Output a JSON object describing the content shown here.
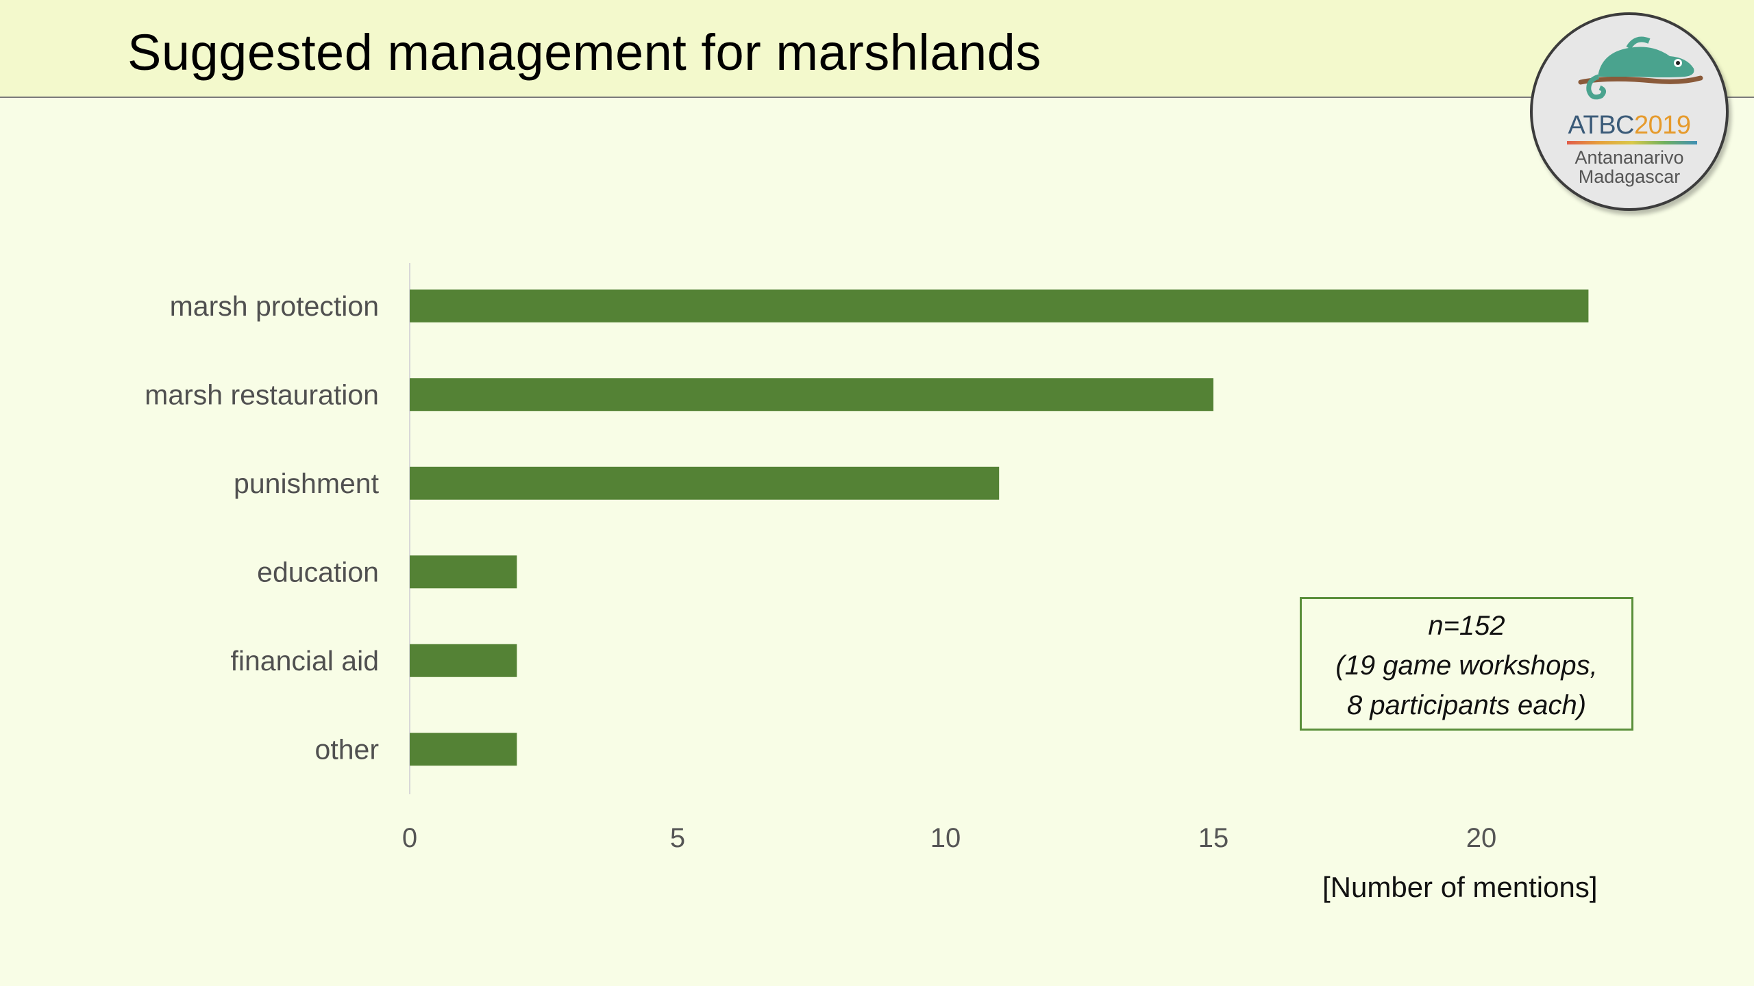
{
  "title": "Suggested management for marshlands",
  "logo": {
    "text_a": "ATBC",
    "text_b": "2019",
    "line1": "Antananarivo",
    "line2": "Madagascar"
  },
  "note": {
    "line1": "n=152",
    "line2": "(19 game workshops,",
    "line3": "8 participants each)"
  },
  "chart_data": {
    "type": "bar",
    "orientation": "horizontal",
    "categories": [
      "marsh protection",
      "marsh restauration",
      "punishment",
      "education",
      "financial aid",
      "other"
    ],
    "values": [
      22,
      15,
      11,
      2,
      2,
      2
    ],
    "xlabel": "[Number of mentions]",
    "xlim": [
      0,
      23
    ],
    "xticks": [
      0,
      5,
      10,
      15,
      20
    ],
    "bar_color": "#548235",
    "grid": false
  }
}
